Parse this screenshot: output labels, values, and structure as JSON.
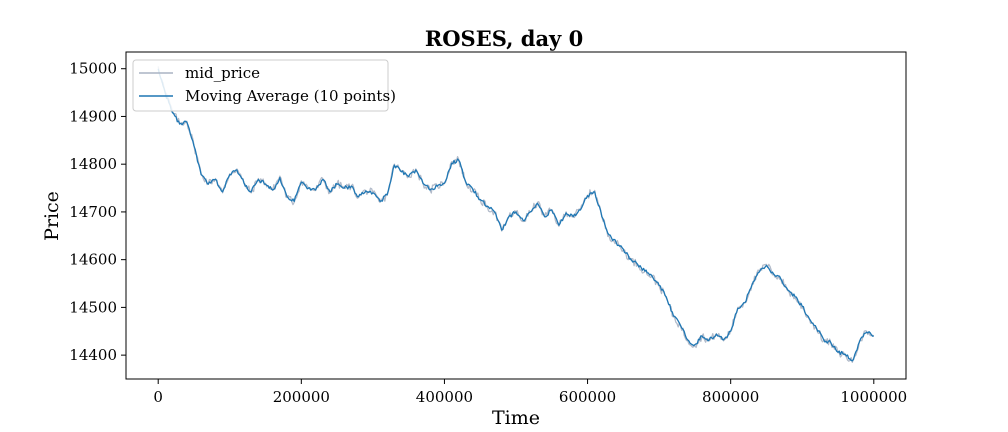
{
  "chart_data": {
    "type": "line",
    "title": "ROSES, day 0",
    "xlabel": "Time",
    "ylabel": "Price",
    "xlim": [
      -45000,
      1045000
    ],
    "ylim": [
      14350,
      15035
    ],
    "xticks": [
      0,
      200000,
      400000,
      600000,
      800000,
      1000000
    ],
    "xtick_labels": [
      "0",
      "200000",
      "400000",
      "600000",
      "800000",
      "1000000"
    ],
    "yticks": [
      14400,
      14500,
      14600,
      14700,
      14800,
      14900,
      15000
    ],
    "ytick_labels": [
      "14400",
      "14500",
      "14600",
      "14700",
      "14800",
      "14900",
      "15000"
    ],
    "grid": false,
    "legend_position": "top-left",
    "series": [
      {
        "name": "mid_price",
        "color": "#aab4c4",
        "x": [
          0,
          10000,
          20000,
          30000,
          40000,
          50000,
          60000,
          70000,
          80000,
          90000,
          100000,
          110000,
          120000,
          130000,
          140000,
          150000,
          160000,
          170000,
          180000,
          190000,
          200000,
          210000,
          220000,
          230000,
          240000,
          250000,
          260000,
          270000,
          280000,
          290000,
          300000,
          310000,
          320000,
          330000,
          340000,
          350000,
          360000,
          370000,
          380000,
          390000,
          400000,
          410000,
          420000,
          430000,
          440000,
          450000,
          460000,
          470000,
          480000,
          490000,
          500000,
          510000,
          520000,
          530000,
          540000,
          550000,
          560000,
          570000,
          580000,
          590000,
          600000,
          610000,
          620000,
          630000,
          640000,
          650000,
          660000,
          670000,
          680000,
          690000,
          700000,
          710000,
          720000,
          730000,
          740000,
          750000,
          760000,
          770000,
          780000,
          790000,
          800000,
          810000,
          820000,
          830000,
          840000,
          850000,
          860000,
          870000,
          880000,
          890000,
          900000,
          910000,
          920000,
          930000,
          940000,
          950000,
          960000,
          970000,
          980000,
          990000,
          1000000
        ],
        "values": [
          15005,
          14950,
          14910,
          14885,
          14890,
          14840,
          14780,
          14760,
          14770,
          14740,
          14780,
          14790,
          14760,
          14740,
          14770,
          14760,
          14745,
          14775,
          14730,
          14720,
          14765,
          14750,
          14745,
          14770,
          14740,
          14760,
          14750,
          14755,
          14730,
          14745,
          14740,
          14720,
          14735,
          14800,
          14785,
          14775,
          14790,
          14760,
          14745,
          14755,
          14760,
          14805,
          14810,
          14760,
          14745,
          14725,
          14710,
          14700,
          14660,
          14690,
          14700,
          14680,
          14700,
          14720,
          14690,
          14705,
          14670,
          14700,
          14690,
          14705,
          14735,
          14745,
          14690,
          14650,
          14635,
          14620,
          14600,
          14590,
          14575,
          14565,
          14545,
          14520,
          14480,
          14460,
          14430,
          14420,
          14440,
          14430,
          14445,
          14430,
          14450,
          14500,
          14510,
          14550,
          14575,
          14590,
          14570,
          14560,
          14535,
          14520,
          14500,
          14475,
          14455,
          14430,
          14425,
          14405,
          14400,
          14385,
          14430,
          14450,
          14440
        ]
      },
      {
        "name": "Moving Average (10 points)",
        "color": "#1f77b4",
        "x": [
          0,
          10000,
          20000,
          30000,
          40000,
          50000,
          60000,
          70000,
          80000,
          90000,
          100000,
          110000,
          120000,
          130000,
          140000,
          150000,
          160000,
          170000,
          180000,
          190000,
          200000,
          210000,
          220000,
          230000,
          240000,
          250000,
          260000,
          270000,
          280000,
          290000,
          300000,
          310000,
          320000,
          330000,
          340000,
          350000,
          360000,
          370000,
          380000,
          390000,
          400000,
          410000,
          420000,
          430000,
          440000,
          450000,
          460000,
          470000,
          480000,
          490000,
          500000,
          510000,
          520000,
          530000,
          540000,
          550000,
          560000,
          570000,
          580000,
          590000,
          600000,
          610000,
          620000,
          630000,
          640000,
          650000,
          660000,
          670000,
          680000,
          690000,
          700000,
          710000,
          720000,
          730000,
          740000,
          750000,
          760000,
          770000,
          780000,
          790000,
          800000,
          810000,
          820000,
          830000,
          840000,
          850000,
          860000,
          870000,
          880000,
          890000,
          900000,
          910000,
          920000,
          930000,
          940000,
          950000,
          960000,
          970000,
          980000,
          990000,
          1000000
        ],
        "values": [
          15000,
          14948,
          14908,
          14884,
          14888,
          14838,
          14778,
          14758,
          14768,
          14742,
          14778,
          14788,
          14760,
          14742,
          14768,
          14758,
          14746,
          14772,
          14732,
          14722,
          14762,
          14750,
          14746,
          14768,
          14742,
          14758,
          14750,
          14754,
          14732,
          14744,
          14740,
          14722,
          14736,
          14798,
          14784,
          14774,
          14788,
          14760,
          14746,
          14754,
          14760,
          14802,
          14808,
          14762,
          14746,
          14726,
          14712,
          14700,
          14662,
          14690,
          14700,
          14682,
          14700,
          14718,
          14690,
          14704,
          14672,
          14698,
          14690,
          14704,
          14734,
          14742,
          14690,
          14652,
          14636,
          14622,
          14602,
          14590,
          14576,
          14566,
          14546,
          14522,
          14482,
          14462,
          14432,
          14422,
          14440,
          14432,
          14444,
          14432,
          14450,
          14498,
          14510,
          14548,
          14574,
          14588,
          14570,
          14560,
          14536,
          14522,
          14502,
          14476,
          14456,
          14432,
          14426,
          14406,
          14402,
          14388,
          14428,
          14448,
          14440
        ]
      }
    ]
  },
  "noise": {
    "mid_amplitude": 4,
    "ma_amplitude": 2,
    "substeps": 6
  }
}
